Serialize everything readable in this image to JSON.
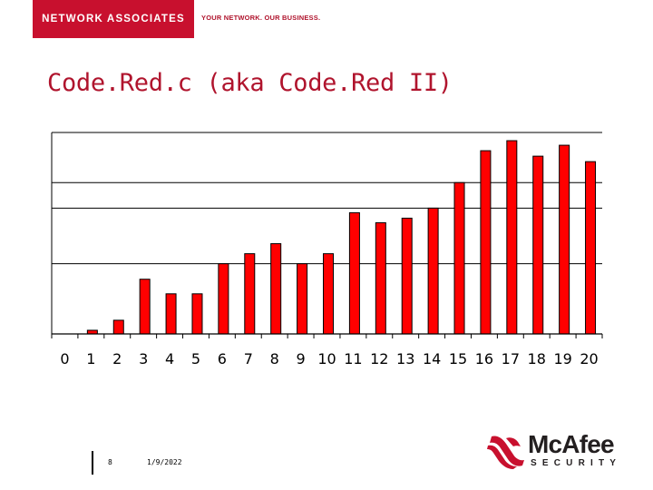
{
  "header": {
    "brand_name": "NETWORK ASSOCIATES",
    "tagline": "YOUR NETWORK. OUR BUSINESS."
  },
  "slide": {
    "title": "Code.Red.c (aka Code.Red II)",
    "page_number": "8",
    "date": "1/9/2022"
  },
  "logo": {
    "name": "McAfee",
    "subtitle": "SECURITY",
    "icon": "mcafee-shield-icon"
  },
  "colors": {
    "brand_red": "#c8102e",
    "bar_fill": "#ff0000",
    "bar_stroke": "#000000",
    "title_red": "#b0142d"
  },
  "chart_data": {
    "type": "bar",
    "title": "",
    "xlabel": "",
    "ylabel": "",
    "categories": [
      "0",
      "1",
      "2",
      "3",
      "4",
      "5",
      "6",
      "7",
      "8",
      "9",
      "10",
      "11",
      "12",
      "13",
      "14",
      "15",
      "16",
      "17",
      "18",
      "19",
      "20"
    ],
    "values": [
      0,
      4,
      15,
      60,
      44,
      44,
      77,
      88,
      99,
      77,
      88,
      133,
      122,
      127,
      138,
      166,
      201,
      212,
      195,
      207,
      189
    ],
    "ylim": [
      0,
      221
    ],
    "gridlines": [
      77,
      138,
      166,
      221
    ],
    "y_tick_labels_visible": false,
    "grid": true,
    "legend": "none"
  }
}
